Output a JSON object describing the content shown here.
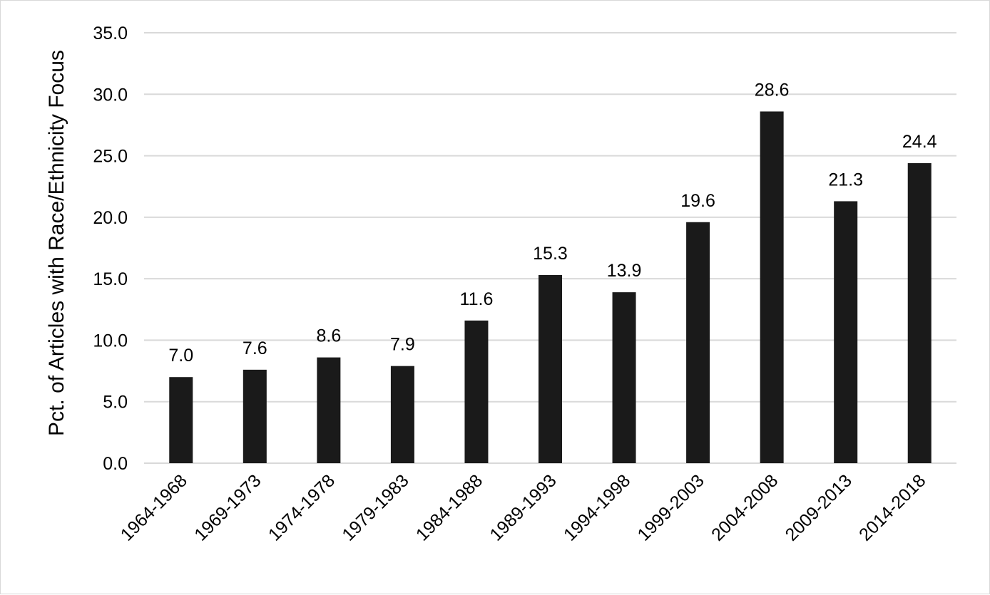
{
  "chart_data": {
    "type": "bar",
    "title": "",
    "xlabel": "",
    "ylabel": "Pct. of Articles with Race/Ethnicity Focus",
    "categories": [
      "1964-1968",
      "1969-1973",
      "1974-1978",
      "1979-1983",
      "1984-1988",
      "1989-1993",
      "1994-1998",
      "1999-2003",
      "2004-2008",
      "2009-2013",
      "2014-2018"
    ],
    "values": [
      7.0,
      7.6,
      8.6,
      7.9,
      11.6,
      15.3,
      13.9,
      19.6,
      28.6,
      21.3,
      24.4
    ],
    "data_labels": [
      "7.0",
      "7.6",
      "8.6",
      "7.9",
      "11.6",
      "15.3",
      "13.9",
      "19.6",
      "28.6",
      "21.3",
      "24.4"
    ],
    "ylim": [
      0,
      35
    ],
    "y_ticks": [
      "0.0",
      "5.0",
      "10.0",
      "15.0",
      "20.0",
      "25.0",
      "30.0",
      "35.0"
    ],
    "grid": true,
    "legend": "none",
    "colors": {
      "bar": "#1a1a1a",
      "grid": "#d9d9d9",
      "text": "#000000"
    }
  }
}
